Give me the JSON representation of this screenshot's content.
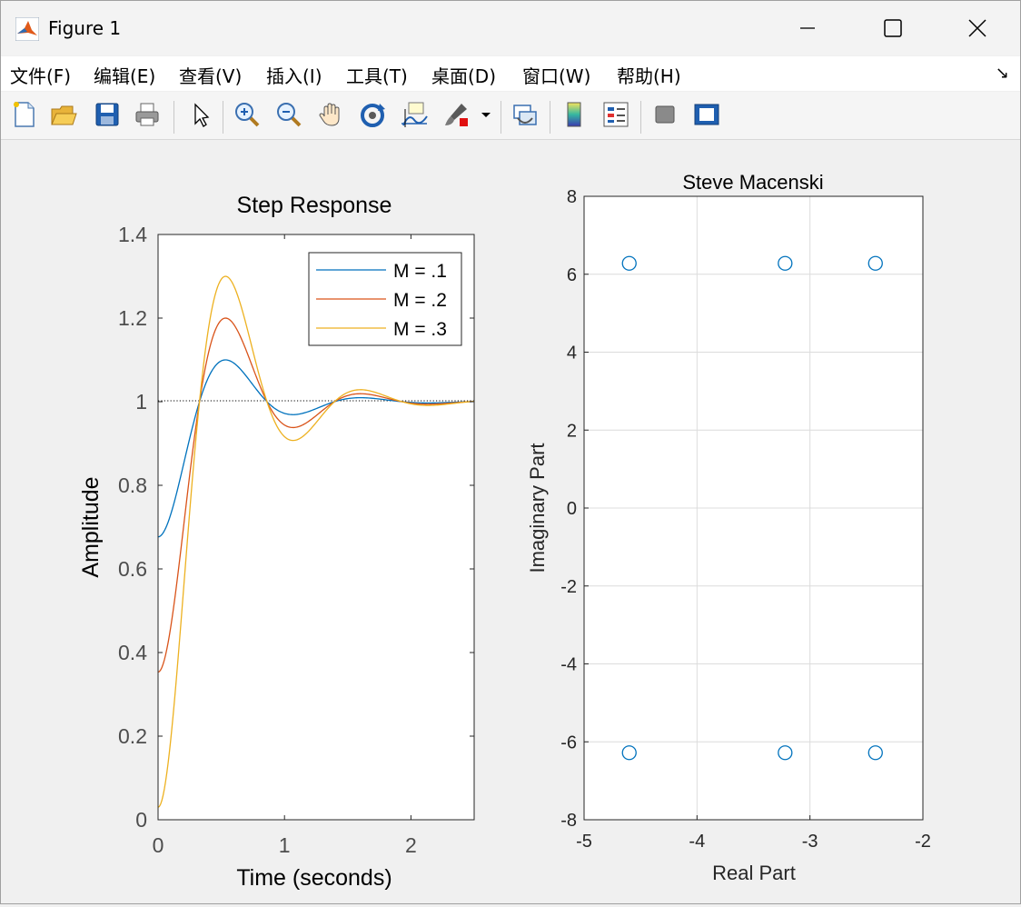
{
  "window": {
    "title": "Figure 1",
    "icon": "matlab-icon"
  },
  "menu": [
    "文件(F)",
    "编辑(E)",
    "查看(V)",
    "插入(I)",
    "工具(T)",
    "桌面(D)",
    "窗口(W)",
    "帮助(H)"
  ],
  "toolbar": [
    "new-figure-icon",
    "open-file-icon",
    "save-icon",
    "print-icon",
    "edit-plot-arrow-icon",
    "zoom-in-icon",
    "zoom-out-icon",
    "pan-hand-icon",
    "rotate-3d-icon",
    "data-cursor-icon",
    "brush-icon",
    "brush-dropdown-icon",
    "link-plot-icon",
    "colorbar-icon",
    "legend-icon",
    "hide-plot-tools-icon",
    "show-plot-tools-icon"
  ],
  "chart_data": [
    {
      "type": "line",
      "title": "Step Response",
      "xlabel": "Time (seconds)",
      "ylabel": "Amplitude",
      "xlim": [
        0,
        2.5
      ],
      "ylim": [
        0,
        1.4
      ],
      "xticks": [
        "0",
        "1",
        "2"
      ],
      "yticks": [
        "0",
        "0.2",
        "0.4",
        "0.6",
        "0.8",
        "1",
        "1.2",
        "1.4"
      ],
      "reference_line": 1,
      "legend_position": "top-right",
      "series": [
        {
          "name": "M = .1",
          "color": "#0072bd",
          "peak": 1.1,
          "peak_time": 0.5,
          "settling_ripple": [
            0.99,
            1.0
          ]
        },
        {
          "name": "M = .2",
          "color": "#d95319",
          "peak": 1.2,
          "peak_time": 0.5,
          "undershoot": 0.96,
          "undershoot_time": 1.0
        },
        {
          "name": "M = .3",
          "color": "#edb120",
          "peak": 1.3,
          "peak_time": 0.5,
          "undershoot": 0.91,
          "undershoot_time": 1.0
        }
      ]
    },
    {
      "type": "scatter",
      "title": "Steve Macenski",
      "xlabel": "Real Part",
      "ylabel": "Imaginary Part",
      "xlim": [
        -5,
        -2
      ],
      "ylim": [
        -8,
        8
      ],
      "xticks": [
        "-5",
        "-4",
        "-3",
        "-2"
      ],
      "yticks": [
        "-8",
        "-6",
        "-4",
        "-2",
        "0",
        "2",
        "4",
        "6",
        "8"
      ],
      "grid": true,
      "marker": "circle",
      "color": "#0072bd",
      "points": [
        {
          "x": -4.6,
          "y": 6.28
        },
        {
          "x": -3.22,
          "y": 6.28
        },
        {
          "x": -2.42,
          "y": 6.28
        },
        {
          "x": -4.6,
          "y": -6.28
        },
        {
          "x": -3.22,
          "y": -6.28
        },
        {
          "x": -2.42,
          "y": -6.28
        }
      ]
    }
  ]
}
